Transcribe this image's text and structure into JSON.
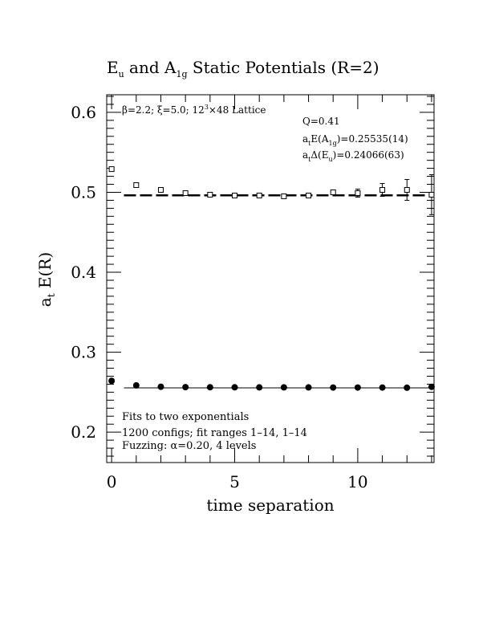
{
  "chart_data": {
    "type": "scatter",
    "title": {
      "main": "E",
      "sub1": "u",
      "mid": " and A",
      "sub2": "1g",
      "tail": " Static Potentials (R=2)"
    },
    "xlabel": "time separation",
    "ylabel": {
      "main": "a",
      "sub": "t",
      "tail": " E(R)"
    },
    "xlim": [
      -0.2,
      13.1
    ],
    "ylim": [
      0.162,
      0.622
    ],
    "xticks": [
      0,
      5,
      10
    ],
    "xtick_labels": [
      "0",
      "5",
      "10"
    ],
    "yticks": [
      0.2,
      0.3,
      0.4,
      0.5,
      0.6
    ],
    "ytick_labels": [
      "0.2",
      "0.3",
      "0.4",
      "0.5",
      "0.6"
    ],
    "series": [
      {
        "marker": "filled-circle",
        "x": [
          0,
          1,
          2,
          3,
          4,
          5,
          6,
          7,
          8,
          9,
          10,
          11,
          12,
          13
        ],
        "y": [
          0.2642,
          0.2585,
          0.2568,
          0.2563,
          0.2562,
          0.2561,
          0.256,
          0.256,
          0.256,
          0.2558,
          0.2558,
          0.2558,
          0.2556,
          0.2567
        ],
        "err": [
          0.001,
          0.001,
          0.001,
          0.001,
          0.001,
          0.001,
          0.001,
          0.001,
          0.001,
          0.001,
          0.001,
          0.001,
          0.001,
          0.001
        ]
      },
      {
        "marker": "open-square",
        "x": [
          0,
          1,
          2,
          3,
          4,
          5,
          6,
          7,
          8,
          9,
          10,
          11,
          12,
          13
        ],
        "y": [
          0.529,
          0.509,
          0.503,
          0.499,
          0.497,
          0.496,
          0.496,
          0.495,
          0.496,
          0.5,
          0.499,
          0.503,
          0.503,
          0.497
        ],
        "err": [
          0.001,
          0.001,
          0.001,
          0.001,
          0.001,
          0.001,
          0.001,
          0.0015,
          0.002,
          0.003,
          0.005,
          0.008,
          0.013,
          0.025
        ]
      }
    ],
    "fit_lines": [
      {
        "y": 0.2554,
        "x": [
          0.5,
          13.1
        ],
        "style": "solid"
      },
      {
        "y": 0.4962,
        "x": [
          0.5,
          13.1
        ],
        "style": "dashed"
      }
    ],
    "annotations": {
      "lattice": {
        "beta": "β=2.2; ",
        "xi": "ξ=5.0; 12",
        "cube": "3",
        "tail": "×48 Lattice"
      },
      "q": "Q=0.41",
      "energy_a1g": {
        "pre": "a",
        "pre_sub": "t",
        "mid": "E(A",
        "mid_sub": "1g",
        "tail": ")=0.25535(14)"
      },
      "delta_eu": {
        "pre": "a",
        "pre_sub": "t",
        "mid": "Δ(E",
        "mid_sub": "u",
        "tail": ")=0.24066(63)"
      },
      "fits": "Fits to two exponentials",
      "configs": "1200 configs; fit ranges 1–14, 1–14",
      "fuzzing": "Fuzzing: α=0.20, 4 levels"
    }
  }
}
